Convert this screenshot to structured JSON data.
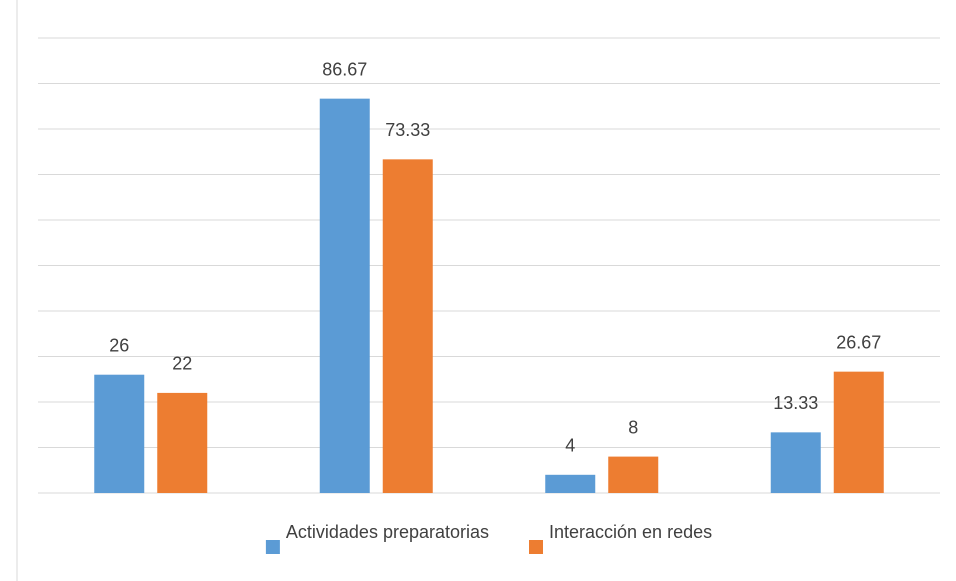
{
  "chart_data": {
    "type": "bar",
    "categories": [
      null,
      null,
      null,
      null
    ],
    "series": [
      {
        "name": "Actividades preparatorias",
        "color": "#5b9bd5",
        "values": [
          26,
          86.67,
          4,
          13.33
        ]
      },
      {
        "name": "Interacción en redes",
        "color": "#ed7d31",
        "values": [
          22,
          73.33,
          8,
          26.67
        ]
      }
    ],
    "ylim": [
      0,
      100
    ],
    "yticks": [
      0,
      10,
      20,
      30,
      40,
      50,
      60,
      70,
      80,
      90,
      100
    ],
    "grid": true,
    "legend": "bottom"
  }
}
